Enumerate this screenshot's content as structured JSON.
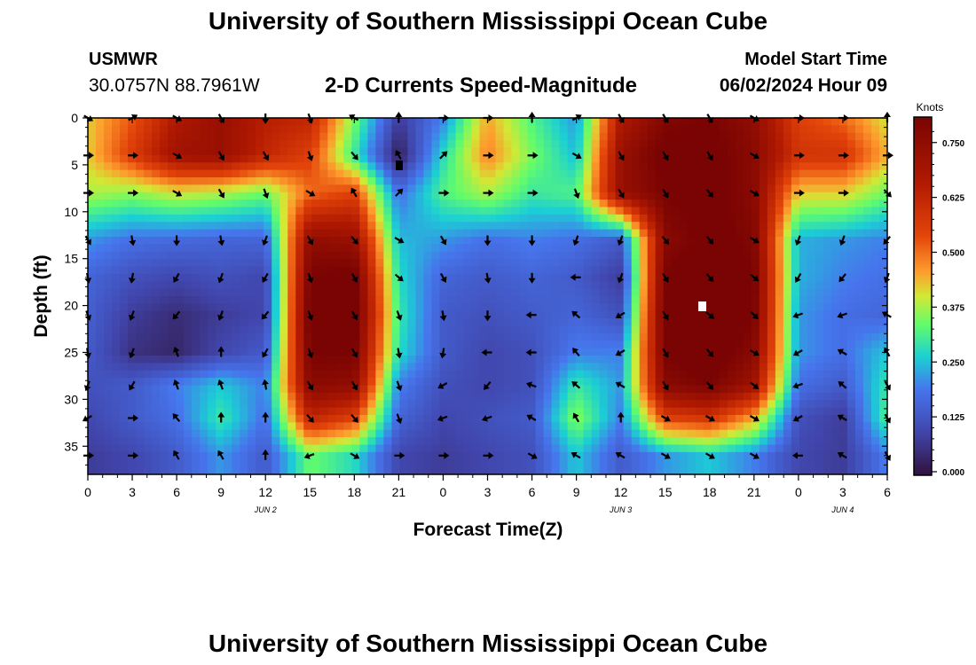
{
  "header": {
    "title": "University of Southern Mississippi Ocean Cube",
    "station": "USMWR",
    "coords": "30.0757N  88.7961W",
    "subtitle": "2-D Currents Speed-Magnitude",
    "start_label": "Model Start Time",
    "start_value": "06/02/2024 Hour 09"
  },
  "footer": {
    "title": "University of Southern Mississippi Ocean Cube"
  },
  "chart_data": {
    "type": "heatmap",
    "title": "2-D Currents Speed-Magnitude",
    "xlabel": "Forecast Time(Z)",
    "ylabel": "Depth (ft)",
    "x_range": [
      0,
      54
    ],
    "x_unit": "hours after 00Z Jun 2",
    "y_range": [
      0,
      38
    ],
    "x_ticks": [
      0,
      3,
      6,
      9,
      12,
      15,
      18,
      21,
      24,
      27,
      30,
      33,
      36,
      39,
      42,
      45,
      48,
      51,
      54
    ],
    "x_tick_labels": [
      "0",
      "3",
      "6",
      "9",
      "12",
      "15",
      "18",
      "21",
      "0",
      "3",
      "6",
      "9",
      "12",
      "15",
      "18",
      "21",
      "0",
      "3",
      "6"
    ],
    "day_labels": [
      {
        "x": 12,
        "label": "JUN 2"
      },
      {
        "x": 36,
        "label": "JUN 3"
      },
      {
        "x": 51,
        "label": "JUN 4"
      }
    ],
    "y_ticks": [
      0,
      5,
      10,
      15,
      20,
      25,
      30,
      35
    ],
    "colorbar": {
      "title": "Knots",
      "min": 0,
      "max": 0.8,
      "ticks": [
        0.0,
        0.125,
        0.25,
        0.375,
        0.5,
        0.625,
        0.75
      ],
      "tick_labels": [
        "0.000",
        "0.125",
        "0.250",
        "0.375",
        "0.500",
        "0.625",
        "0.750"
      ]
    },
    "time_hours": [
      0,
      3,
      6,
      9,
      12,
      15,
      18,
      21,
      24,
      27,
      30,
      33,
      36,
      39,
      42,
      45,
      48,
      51,
      54
    ],
    "depth_ft": [
      0,
      4,
      8,
      13,
      17,
      21,
      25,
      28.5,
      32,
      36
    ],
    "speed_knots": [
      [
        0.42,
        0.52,
        0.66,
        0.72,
        0.64,
        0.62,
        0.35,
        0.08,
        0.2,
        0.45,
        0.32,
        0.22,
        0.66,
        0.78,
        0.8,
        0.74,
        0.55,
        0.5,
        0.4
      ],
      [
        0.42,
        0.56,
        0.7,
        0.72,
        0.62,
        0.55,
        0.3,
        0.02,
        0.28,
        0.48,
        0.35,
        0.25,
        0.72,
        0.82,
        0.82,
        0.76,
        0.58,
        0.58,
        0.44
      ],
      [
        0.38,
        0.36,
        0.4,
        0.38,
        0.34,
        0.5,
        0.55,
        0.18,
        0.32,
        0.38,
        0.3,
        0.32,
        0.72,
        0.8,
        0.82,
        0.76,
        0.42,
        0.42,
        0.34
      ],
      [
        0.22,
        0.18,
        0.17,
        0.16,
        0.16,
        0.74,
        0.72,
        0.25,
        0.22,
        0.18,
        0.2,
        0.18,
        0.14,
        0.76,
        0.82,
        0.78,
        0.24,
        0.22,
        0.2
      ],
      [
        0.16,
        0.12,
        0.1,
        0.12,
        0.1,
        0.8,
        0.82,
        0.28,
        0.16,
        0.14,
        0.16,
        0.14,
        0.08,
        0.8,
        0.86,
        0.8,
        0.24,
        0.2,
        0.18
      ],
      [
        0.15,
        0.08,
        0.05,
        0.08,
        0.1,
        0.82,
        0.84,
        0.3,
        0.14,
        0.12,
        0.14,
        0.16,
        0.12,
        0.82,
        0.86,
        0.8,
        0.22,
        0.18,
        0.16
      ],
      [
        0.14,
        0.06,
        0.04,
        0.1,
        0.14,
        0.8,
        0.8,
        0.28,
        0.14,
        0.1,
        0.12,
        0.2,
        0.2,
        0.8,
        0.84,
        0.76,
        0.22,
        0.18,
        0.26
      ],
      [
        0.12,
        0.14,
        0.2,
        0.26,
        0.2,
        0.76,
        0.74,
        0.2,
        0.12,
        0.1,
        0.12,
        0.3,
        0.22,
        0.76,
        0.8,
        0.7,
        0.18,
        0.14,
        0.3
      ],
      [
        0.1,
        0.14,
        0.18,
        0.3,
        0.18,
        0.62,
        0.55,
        0.16,
        0.1,
        0.12,
        0.14,
        0.36,
        0.2,
        0.55,
        0.58,
        0.45,
        0.12,
        0.08,
        0.32
      ],
      [
        0.08,
        0.1,
        0.14,
        0.22,
        0.14,
        0.34,
        0.28,
        0.1,
        0.08,
        0.1,
        0.12,
        0.26,
        0.14,
        0.22,
        0.26,
        0.2,
        0.1,
        0.08,
        0.2
      ]
    ],
    "direction_deg": [
      [
        120,
        60,
        120,
        150,
        180,
        160,
        300,
        0,
        90,
        90,
        0,
        60,
        150,
        150,
        150,
        120,
        90,
        90,
        0
      ],
      [
        90,
        90,
        120,
        150,
        150,
        160,
        140,
        330,
        45,
        90,
        90,
        120,
        150,
        150,
        150,
        120,
        90,
        90,
        90
      ],
      [
        90,
        90,
        120,
        150,
        160,
        120,
        330,
        45,
        90,
        90,
        90,
        160,
        150,
        150,
        140,
        120,
        90,
        90,
        135
      ],
      [
        150,
        170,
        180,
        170,
        200,
        150,
        140,
        120,
        150,
        180,
        180,
        200,
        200,
        140,
        140,
        120,
        200,
        200,
        220
      ],
      [
        170,
        190,
        210,
        200,
        210,
        160,
        150,
        130,
        150,
        170,
        180,
        270,
        200,
        150,
        140,
        130,
        210,
        220,
        200
      ],
      [
        160,
        200,
        220,
        200,
        220,
        160,
        150,
        160,
        170,
        180,
        270,
        310,
        240,
        150,
        130,
        135,
        250,
        250,
        300
      ],
      [
        170,
        200,
        340,
        0,
        210,
        160,
        150,
        170,
        190,
        270,
        270,
        320,
        240,
        150,
        140,
        120,
        240,
        300,
        330
      ],
      [
        200,
        210,
        340,
        340,
        350,
        150,
        150,
        160,
        240,
        220,
        290,
        310,
        300,
        150,
        140,
        130,
        250,
        310,
        150
      ],
      [
        240,
        90,
        320,
        0,
        0,
        140,
        140,
        160,
        250,
        250,
        300,
        330,
        0,
        120,
        120,
        120,
        240,
        300,
        150
      ],
      [
        90,
        90,
        330,
        330,
        0,
        250,
        120,
        90,
        90,
        90,
        120,
        300,
        300,
        120,
        120,
        120,
        270,
        300,
        150
      ]
    ]
  }
}
